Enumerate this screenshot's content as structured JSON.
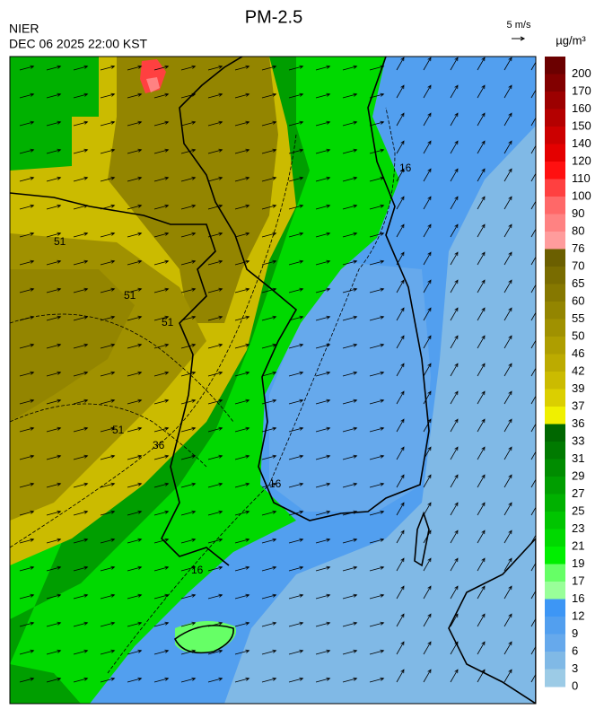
{
  "header": {
    "title": "PM-2.5",
    "agency": "NIER",
    "time": "DEC 06 2025 22:00 KST"
  },
  "wind_scale": {
    "label": "5 m/s"
  },
  "map": {
    "contour_labels": [
      "51",
      "51",
      "51",
      "51",
      "36",
      "16",
      "16",
      "16"
    ]
  },
  "colorbar": {
    "unit": "µg/m³",
    "levels": [
      200,
      170,
      160,
      150,
      140,
      120,
      110,
      100,
      90,
      80,
      76,
      70,
      65,
      60,
      55,
      50,
      46,
      42,
      39,
      37,
      36,
      33,
      31,
      29,
      27,
      25,
      23,
      21,
      19,
      17,
      16,
      12,
      9,
      6,
      3,
      0
    ],
    "colors": [
      "#6b0000",
      "#820000",
      "#9c0000",
      "#b40000",
      "#cc0000",
      "#e40000",
      "#ff1010",
      "#ff4040",
      "#ff6868",
      "#ff8282",
      "#ff9c9c",
      "#6b5f00",
      "#796c00",
      "#867800",
      "#938500",
      "#a09100",
      "#ae9e00",
      "#bcab00",
      "#cbbb00",
      "#dbcf00",
      "#f0f000",
      "#006700",
      "#007a00",
      "#008c00",
      "#009e00",
      "#00b100",
      "#00c500",
      "#00d900",
      "#00ef00",
      "#66ff66",
      "#99ff99",
      "#3d96f5",
      "#529fef",
      "#66a9ec",
      "#80b9e6",
      "#9ccbe6"
    ]
  }
}
